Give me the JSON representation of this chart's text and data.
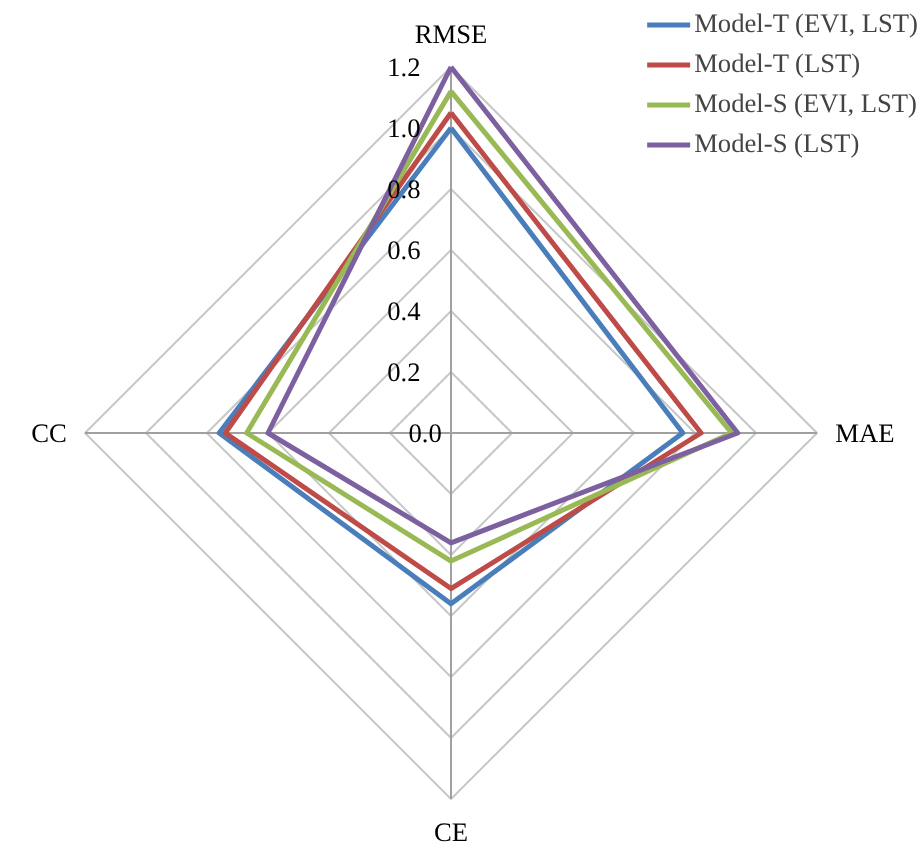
{
  "chart_data": {
    "type": "radar",
    "categories": [
      "RMSE",
      "MAE",
      "CE",
      "CC"
    ],
    "series": [
      {
        "name": "Model-T (EVI, LST)",
        "color": "#4a7ebb",
        "values": [
          1.0,
          0.76,
          0.56,
          0.76
        ]
      },
      {
        "name": "Model-T (LST)",
        "color": "#be4b48",
        "values": [
          1.05,
          0.82,
          0.51,
          0.74
        ]
      },
      {
        "name": "Model-S (EVI, LST)",
        "color": "#98b954",
        "values": [
          1.12,
          0.92,
          0.42,
          0.67
        ]
      },
      {
        "name": "Model-S (LST)",
        "color": "#7d60a0",
        "values": [
          1.2,
          0.94,
          0.36,
          0.6
        ]
      }
    ],
    "ylim": [
      0,
      1.2
    ],
    "yticks": [
      {
        "value": 0,
        "label": "0.0"
      },
      {
        "value": 0.2,
        "label": "0.2"
      },
      {
        "value": 0.4,
        "label": "0.4"
      },
      {
        "value": 0.6,
        "label": "0.6"
      },
      {
        "value": 0.8,
        "label": "0.8"
      },
      {
        "value": 1.0,
        "label": "1.0"
      },
      {
        "value": 1.2,
        "label": "1.2"
      }
    ],
    "grid": true,
    "legend": "top right",
    "marker": "none",
    "line_style": "solid"
  }
}
